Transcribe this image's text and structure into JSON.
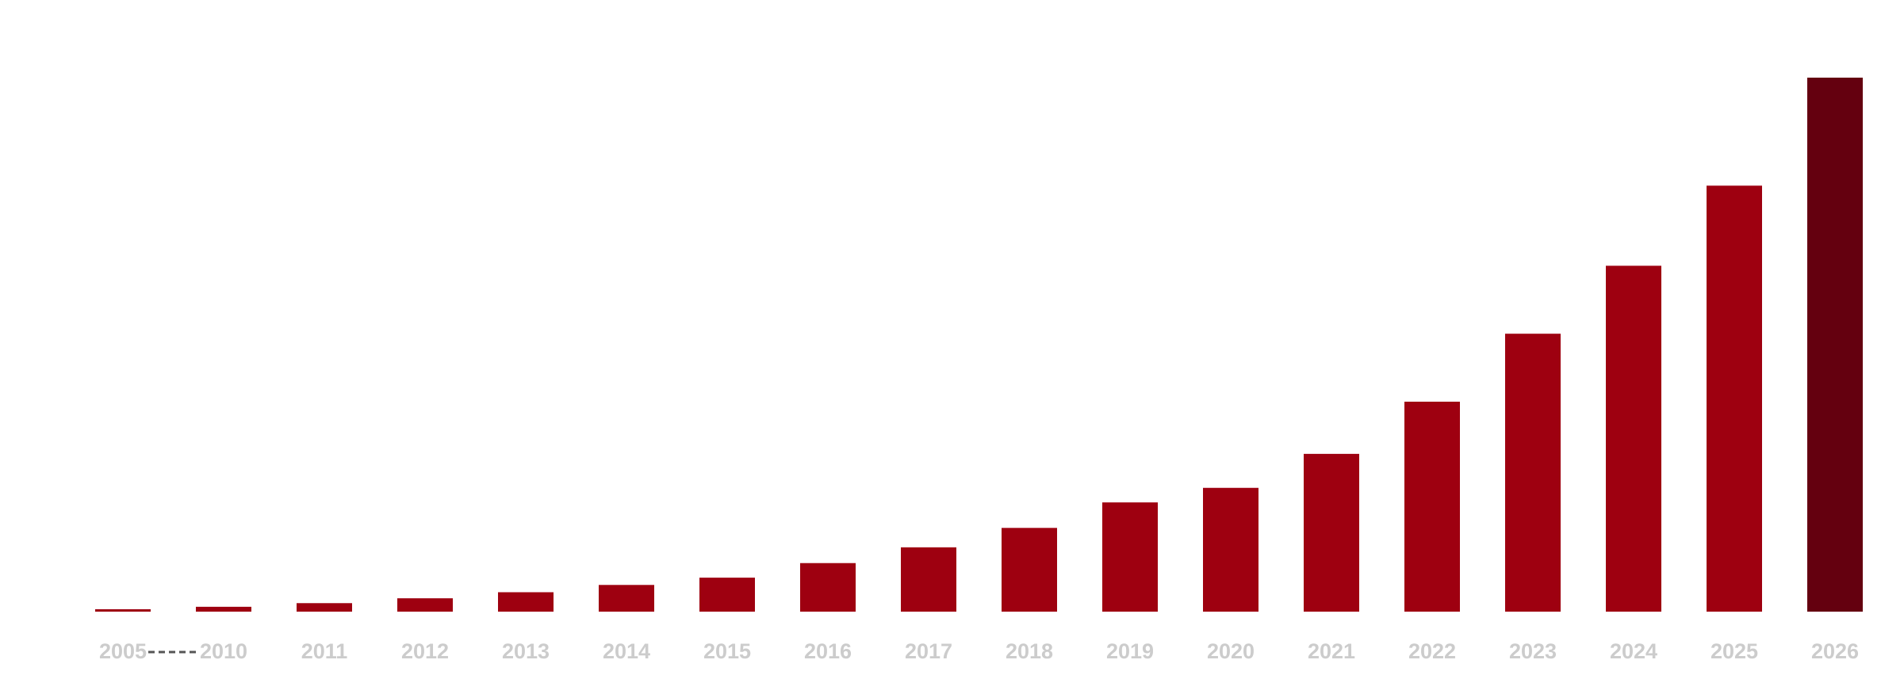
{
  "chart_data": {
    "type": "bar",
    "categories": [
      "2005",
      "2010",
      "2011",
      "2012",
      "2013",
      "2014",
      "2015",
      "2016",
      "2017",
      "2018",
      "2019",
      "2020",
      "2021",
      "2022",
      "2023",
      "2024",
      "2025",
      "2026"
    ],
    "values": [
      2,
      4,
      7,
      11,
      16,
      22,
      28,
      40,
      53,
      69,
      90,
      102,
      130,
      173,
      229,
      285,
      351,
      440
    ],
    "colors": [
      "#9e0010",
      "#9e0010",
      "#9e0010",
      "#9e0010",
      "#9e0010",
      "#9e0010",
      "#9e0010",
      "#9e0010",
      "#9e0010",
      "#9e0010",
      "#9e0010",
      "#9e0010",
      "#9e0010",
      "#9e0010",
      "#9e0010",
      "#9e0010",
      "#9e0010",
      "#64000f"
    ],
    "ylim": [
      0,
      440
    ]
  }
}
